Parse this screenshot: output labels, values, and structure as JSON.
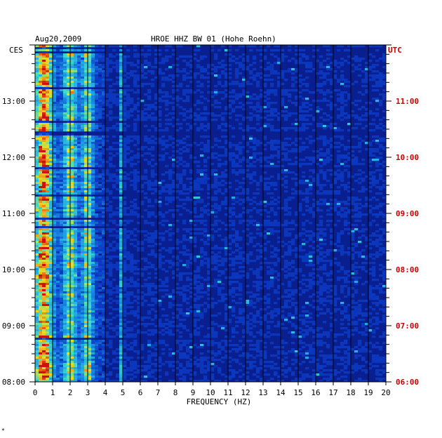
{
  "header": {
    "date": "Aug20,2009",
    "station": "HROE HHZ BW 01 (Hohe Roehn)",
    "left_zone": "CES",
    "right_zone": "UTC"
  },
  "footer": {
    "mark": "*"
  },
  "chart_data": {
    "type": "heatmap",
    "xlabel": "FREQUENCY (HZ)",
    "xlim": [
      0,
      20
    ],
    "x_ticks": [
      "0",
      "1",
      "2",
      "3",
      "4",
      "5",
      "6",
      "7",
      "8",
      "9",
      "10",
      "11",
      "12",
      "13",
      "14",
      "15",
      "16",
      "17",
      "18",
      "19",
      "20"
    ],
    "left_ylim_hours": [
      8,
      14
    ],
    "left_y_ticks": [
      {
        "hour": 8,
        "label": "08:00"
      },
      {
        "hour": 9,
        "label": "09:00"
      },
      {
        "hour": 10,
        "label": "10:00"
      },
      {
        "hour": 11,
        "label": "11:00"
      },
      {
        "hour": 12,
        "label": "12:00"
      },
      {
        "hour": 13,
        "label": "13:00"
      }
    ],
    "right_y_ticks": [
      {
        "hour": 8,
        "label": "06:00"
      },
      {
        "hour": 9,
        "label": "07:00"
      },
      {
        "hour": 10,
        "label": "08:00"
      },
      {
        "hour": 11,
        "label": "09:00"
      },
      {
        "hour": 12,
        "label": "10:00"
      },
      {
        "hour": 13,
        "label": "11:00"
      }
    ],
    "minor_tick_minutes": 10,
    "grid": true,
    "dominant_frequency_bands_hz": [
      {
        "center": 0.5,
        "width": 0.5
      },
      {
        "center": 2.0,
        "width": 0.4
      },
      {
        "center": 3.0,
        "width": 0.3
      },
      {
        "center": 4.95,
        "width": 0.1
      }
    ],
    "colors": {
      "background": "#0a1f8f",
      "low": "#0b2fb0",
      "mid": "#1ea0e6",
      "high": "#e8e020",
      "peak": "#d01010"
    }
  }
}
